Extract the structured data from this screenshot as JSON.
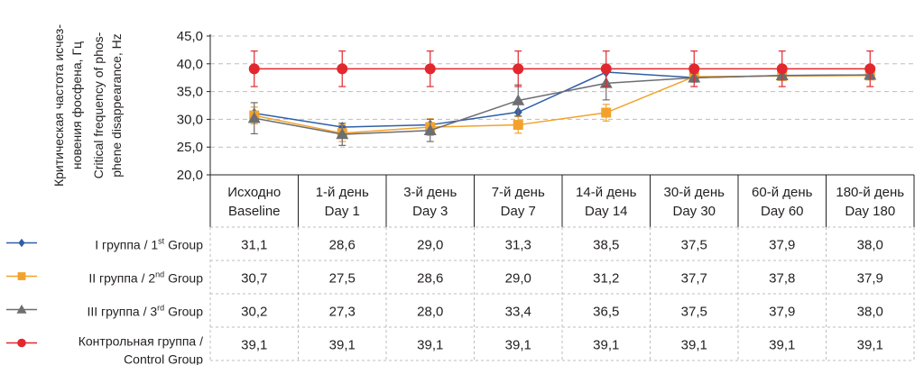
{
  "chart_data": {
    "type": "line",
    "y_title_lines": [
      "Критическая частота исчез-",
      "новения фосфена, Гц",
      "Critical frequency of phos-",
      "phene disappearance, Hz"
    ],
    "ylim": [
      20,
      45
    ],
    "yticks": [
      "20,0",
      "25,0",
      "30,0",
      "35,0",
      "40,0",
      "45,0"
    ],
    "categories": [
      [
        "Исходно",
        "Baseline"
      ],
      [
        "1-й день",
        "Day 1"
      ],
      [
        "3-й день",
        "Day 3"
      ],
      [
        "7-й день",
        "Day 7"
      ],
      [
        "14-й день",
        "Day 14"
      ],
      [
        "30-й день",
        "Day 30"
      ],
      [
        "60-й день",
        "Day 60"
      ],
      [
        "180-й день",
        "Day 180"
      ]
    ],
    "grid": "horizontal-dashed",
    "legend": "table-left",
    "series": [
      {
        "name": "I группа / 1st Group",
        "legend_parts": [
          "I группа / 1",
          "st",
          " Group"
        ],
        "legend_line2": "",
        "marker": "diamond",
        "color": "#2e5fa7",
        "values": [
          31.1,
          28.6,
          29.0,
          31.3,
          38.5,
          37.5,
          37.9,
          38.0
        ],
        "labels": [
          "31,1",
          "28,6",
          "29,0",
          "31,3",
          "38,5",
          "37,5",
          "37,9",
          "38,0"
        ],
        "error": [
          0,
          0,
          0,
          0,
          0,
          0,
          0,
          0
        ]
      },
      {
        "name": "II группа / 2nd Group",
        "legend_parts": [
          "II группа / 2",
          "nd",
          " Group"
        ],
        "legend_line2": "",
        "marker": "square",
        "color": "#f2a22c",
        "values": [
          30.7,
          27.5,
          28.6,
          29.0,
          31.2,
          37.7,
          37.8,
          37.9
        ],
        "labels": [
          "30,7",
          "27,5",
          "28,6",
          "29,0",
          "31,2",
          "37,7",
          "37,8",
          "37,9"
        ],
        "error": [
          1.5,
          1.5,
          1.5,
          1.5,
          1.5,
          0.5,
          0.5,
          0.5
        ]
      },
      {
        "name": "III группа / 3rd Group",
        "legend_parts": [
          "III группа / 3",
          "rd",
          " Group"
        ],
        "legend_line2": "",
        "marker": "triangle",
        "color": "#6d6e71",
        "values": [
          30.2,
          27.3,
          28.0,
          33.4,
          36.5,
          37.5,
          37.9,
          38.0
        ],
        "labels": [
          "30,2",
          "27,3",
          "28,0",
          "33,4",
          "36,5",
          "37,5",
          "37,9",
          "38,0"
        ],
        "error": [
          2.8,
          2.0,
          2.0,
          2.8,
          3.0,
          0.8,
          0.8,
          0.8
        ]
      },
      {
        "name": "Контрольная группа / Control Group",
        "legend_parts": [
          "Контрольная группа /",
          "",
          ""
        ],
        "legend_line2": "Control Group",
        "marker": "circle",
        "color": "#e1282e",
        "values": [
          39.1,
          39.1,
          39.1,
          39.1,
          39.1,
          39.1,
          39.1,
          39.1
        ],
        "labels": [
          "39,1",
          "39,1",
          "39,1",
          "39,1",
          "39,1",
          "39,1",
          "39,1",
          "39,1"
        ],
        "error": [
          3.2,
          3.2,
          3.2,
          3.2,
          3.2,
          3.2,
          3.2,
          3.2
        ]
      }
    ]
  }
}
